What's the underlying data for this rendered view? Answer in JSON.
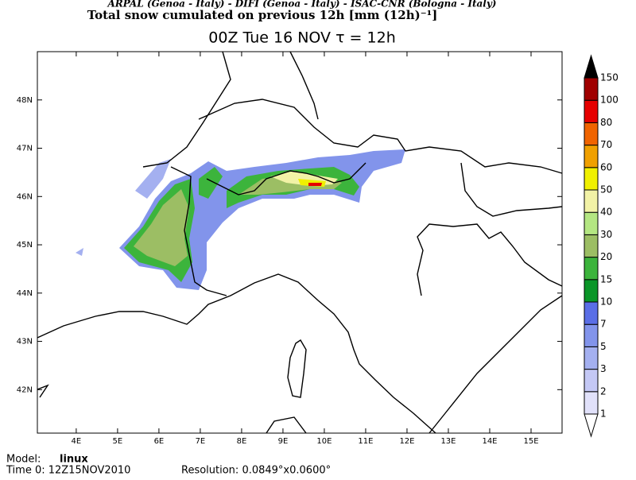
{
  "header": {
    "credits": "ARPAL (Genoa - Italy)  -  DIFI (Genoa - Italy)  -  ISAC-CNR (Bologna - Italy)",
    "title": "Total snow cumulated on previous 12h [mm (12h)⁻¹]",
    "subtitle": "00Z Tue 16 NOV   τ = 12h"
  },
  "map": {
    "xlim": [
      3.06,
      15.75
    ],
    "ylim": [
      41.1,
      49.0
    ],
    "xticks": [
      {
        "value": 4,
        "label": "4E"
      },
      {
        "value": 5,
        "label": "5E"
      },
      {
        "value": 6,
        "label": "6E"
      },
      {
        "value": 7,
        "label": "7E"
      },
      {
        "value": 8,
        "label": "8E"
      },
      {
        "value": 9,
        "label": "9E"
      },
      {
        "value": 10,
        "label": "10E"
      },
      {
        "value": 11,
        "label": "11E"
      },
      {
        "value": 12,
        "label": "12E"
      },
      {
        "value": 13,
        "label": "13E"
      },
      {
        "value": 14,
        "label": "14E"
      },
      {
        "value": 15,
        "label": "15E"
      }
    ],
    "yticks": [
      {
        "value": 42,
        "label": "42N"
      },
      {
        "value": 43,
        "label": "43N"
      },
      {
        "value": 44,
        "label": "44N"
      },
      {
        "value": 45,
        "label": "45N"
      },
      {
        "value": 46,
        "label": "46N"
      },
      {
        "value": 47,
        "label": "47N"
      },
      {
        "value": 48,
        "label": "48N"
      }
    ]
  },
  "colorbar": {
    "levels": [
      1,
      2,
      3,
      5,
      7,
      10,
      15,
      20,
      30,
      40,
      50,
      60,
      70,
      80,
      100,
      150
    ],
    "colors": [
      "#ffffff",
      "#e1e1fa",
      "#c4c8f5",
      "#a4b0f0",
      "#8294eb",
      "#5a6ee6",
      "#0a9628",
      "#3cb43c",
      "#9cbe64",
      "#b4e682",
      "#f2f2a6",
      "#f0f000",
      "#f0a000",
      "#f06400",
      "#e60000",
      "#a00000",
      "#000000"
    ]
  },
  "footer": {
    "model_label": "Model:",
    "model": "linux",
    "time": "Time 0: 12Z15NOV2010",
    "resolution": "Resolution: 0.0849°x0.0600°"
  }
}
